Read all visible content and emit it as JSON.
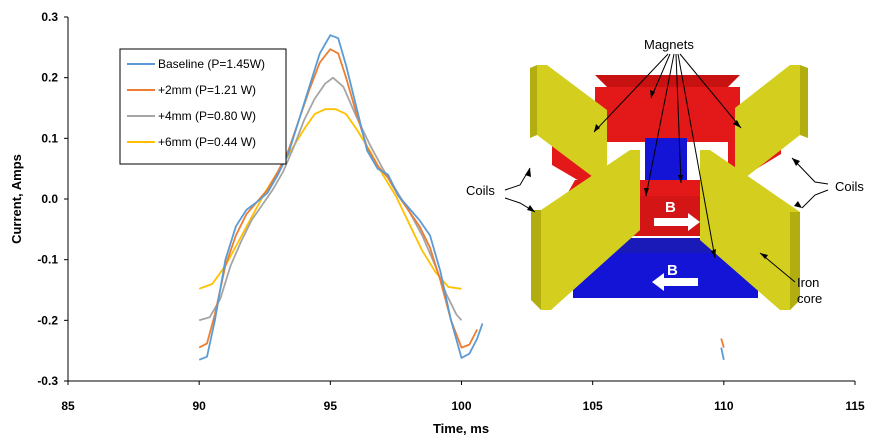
{
  "chart_data": {
    "type": "line",
    "xlabel": "Time, ms",
    "ylabel": "Current, Amps",
    "xlim": [
      85,
      115
    ],
    "ylim": [
      -0.3,
      0.3
    ],
    "xticks": [
      "85",
      "90",
      "95",
      "100",
      "105",
      "110",
      "115"
    ],
    "yticks": [
      "-0.3",
      "-0.2",
      "-0.1",
      "0.0",
      "0.1",
      "0.2",
      "0.3"
    ],
    "grid": false,
    "legend_position": "top-left",
    "series": [
      {
        "name": "Baseline (P=1.45W)",
        "color": "#5B9BD5",
        "x": [
          90.0,
          90.3,
          90.6,
          91.0,
          91.4,
          91.8,
          92.2,
          92.6,
          93.0,
          93.4,
          93.8,
          94.2,
          94.6,
          95.0,
          95.3,
          95.6,
          96.0,
          96.4,
          96.8,
          97.2,
          97.6,
          98.0,
          98.4,
          98.8,
          99.2,
          99.6,
          100.0,
          100.3,
          100.6,
          100.8
        ],
        "y": [
          -0.265,
          -0.26,
          -0.2,
          -0.1,
          -0.045,
          -0.018,
          -0.005,
          0.01,
          0.04,
          0.075,
          0.13,
          0.185,
          0.24,
          0.27,
          0.265,
          0.22,
          0.15,
          0.08,
          0.05,
          0.04,
          0.005,
          -0.015,
          -0.035,
          -0.06,
          -0.12,
          -0.2,
          -0.262,
          -0.255,
          -0.23,
          -0.205
        ]
      },
      {
        "name": "+2mm (P=1.21 W)",
        "color": "#ED7D31",
        "x": [
          90.0,
          90.3,
          90.6,
          91.0,
          91.4,
          91.8,
          92.2,
          92.6,
          93.0,
          93.4,
          93.8,
          94.2,
          94.6,
          95.0,
          95.3,
          95.6,
          96.0,
          96.4,
          96.8,
          97.2,
          97.6,
          98.0,
          98.4,
          98.8,
          99.2,
          99.6,
          100.0,
          100.3,
          100.6
        ],
        "y": [
          -0.245,
          -0.238,
          -0.19,
          -0.11,
          -0.06,
          -0.025,
          -0.005,
          0.015,
          0.045,
          0.08,
          0.13,
          0.18,
          0.225,
          0.247,
          0.24,
          0.2,
          0.14,
          0.085,
          0.055,
          0.035,
          0.005,
          -0.02,
          -0.045,
          -0.08,
          -0.135,
          -0.2,
          -0.245,
          -0.24,
          -0.215
        ]
      },
      {
        "name": "+4mm (P=0.80 W)",
        "color": "#A5A5A5",
        "x": [
          90.0,
          90.4,
          90.8,
          91.2,
          91.6,
          92.0,
          92.4,
          92.8,
          93.2,
          93.6,
          94.0,
          94.4,
          94.8,
          95.1,
          95.5,
          96.0,
          96.5,
          97.0,
          97.5,
          98.0,
          98.5,
          99.0,
          99.4,
          99.8,
          100.0
        ],
        "y": [
          -0.2,
          -0.195,
          -0.165,
          -0.11,
          -0.07,
          -0.035,
          -0.01,
          0.015,
          0.045,
          0.085,
          0.13,
          0.165,
          0.19,
          0.2,
          0.185,
          0.135,
          0.09,
          0.05,
          0.015,
          -0.02,
          -0.06,
          -0.11,
          -0.155,
          -0.19,
          -0.2
        ]
      },
      {
        "name": "+6mm (P=0.44 W)",
        "color": "#FFC000",
        "x": [
          90.0,
          90.5,
          91.0,
          91.5,
          92.0,
          92.5,
          93.0,
          93.5,
          94.0,
          94.4,
          94.8,
          95.2,
          95.6,
          96.0,
          96.5,
          97.0,
          97.5,
          98.0,
          98.5,
          99.0,
          99.5,
          100.0
        ],
        "y": [
          -0.148,
          -0.14,
          -0.11,
          -0.07,
          -0.03,
          0.01,
          0.045,
          0.08,
          0.115,
          0.14,
          0.148,
          0.148,
          0.14,
          0.115,
          0.08,
          0.04,
          0.005,
          -0.04,
          -0.085,
          -0.12,
          -0.145,
          -0.148
        ]
      }
    ],
    "right_traces": [
      {
        "color": "#5B9BD5",
        "x": [
          109.9,
          110.0
        ],
        "y": [
          -0.245,
          -0.265
        ]
      },
      {
        "color": "#ED7D31",
        "x": [
          109.9,
          110.0
        ],
        "y": [
          -0.23,
          -0.245
        ]
      }
    ]
  },
  "inset": {
    "labels": {
      "magnets": "Magnets",
      "coils_left": "Coils",
      "coils_right": "Coils",
      "b_upper": "B",
      "b_lower": "B",
      "iron_core_line1": "Iron",
      "iron_core_line2": "core"
    },
    "colors": {
      "magnet_red": "#E31919",
      "magnet_blue": "#1414D6",
      "coil_yellow": "#D4CF1F",
      "iron_gray": "#7A7A7A"
    }
  }
}
